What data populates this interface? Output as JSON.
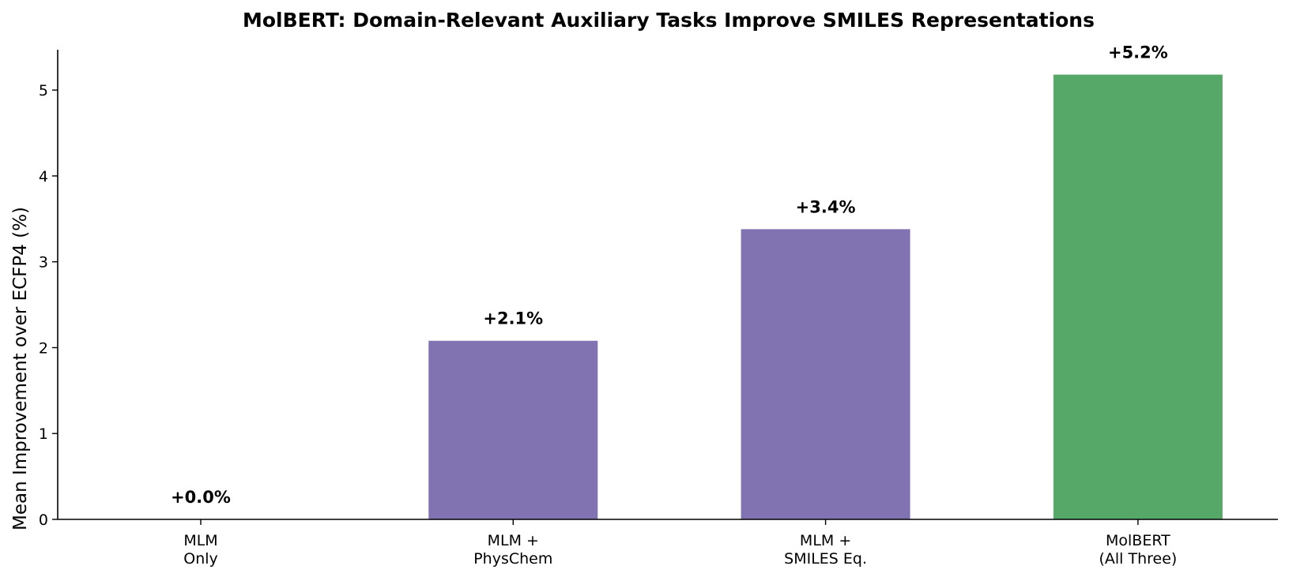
{
  "chart_data": {
    "type": "bar",
    "title": "MolBERT: Domain-Relevant Auxiliary Tasks Improve SMILES Representations",
    "xlabel": "",
    "ylabel": "Mean Improvement over ECFP4 (%)",
    "ylim": [
      0,
      5.47
    ],
    "yticks": [
      "0",
      "1",
      "2",
      "3",
      "4",
      "5"
    ],
    "categories": [
      [
        "MLM",
        "Only"
      ],
      [
        "MLM +",
        "PhysChem"
      ],
      [
        "MLM +",
        "SMILES Eq."
      ],
      [
        "MolBERT",
        "(All Three)"
      ]
    ],
    "values": [
      0.0,
      2.08,
      3.38,
      5.18
    ],
    "data_labels": [
      "+0.0%",
      "+2.1%",
      "+3.4%",
      "+5.2%"
    ],
    "colors": [
      "#8172b2",
      "#8172b2",
      "#8172b2",
      "#55a868"
    ],
    "grid": false,
    "legend": "none"
  }
}
